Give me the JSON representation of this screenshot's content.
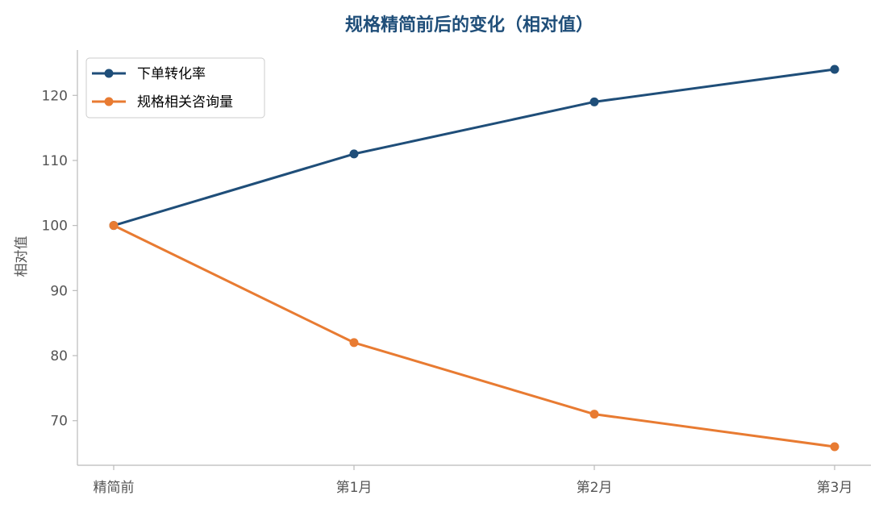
{
  "chart_data": {
    "type": "line",
    "title": "规格精简前后的变化（相对值）",
    "xlabel": "",
    "ylabel": "相对值",
    "categories": [
      "精简前",
      "第1月",
      "第2月",
      "第3月"
    ],
    "series": [
      {
        "name": "下单转化率",
        "values": [
          100,
          111,
          119,
          124
        ],
        "color": "#1f4e79"
      },
      {
        "name": "规格相关咨询量",
        "values": [
          100,
          82,
          71,
          66
        ],
        "color": "#e87b32"
      }
    ],
    "ylim": [
      63,
      127
    ],
    "yticks": [
      70,
      80,
      90,
      100,
      110,
      120
    ],
    "grid": false,
    "legend_position": "top-left"
  }
}
